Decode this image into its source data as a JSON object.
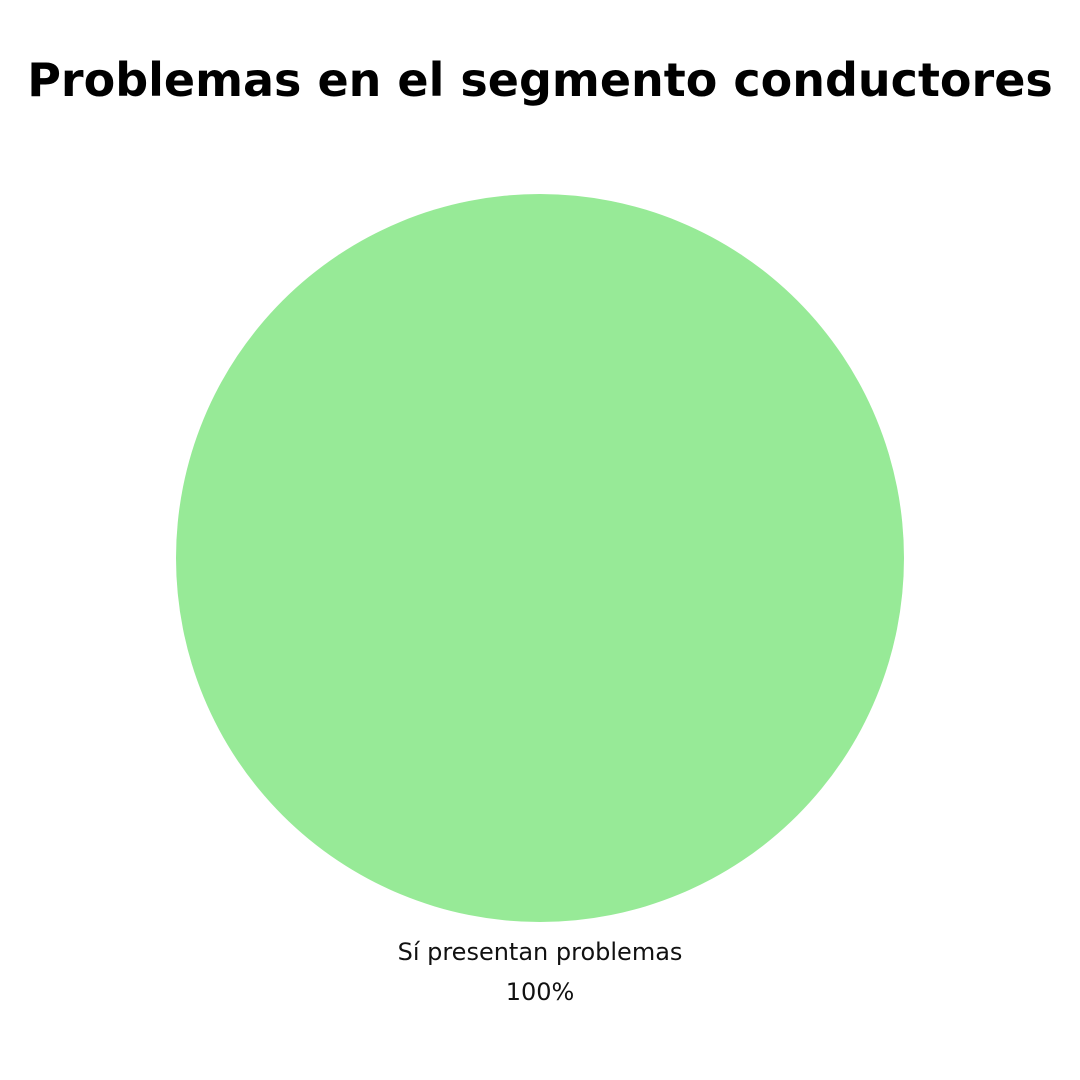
{
  "chart_data": {
    "type": "pie",
    "title": "Problemas en el segmento conductores",
    "slices": [
      {
        "label": "Sí presentan problemas",
        "value": 100,
        "value_label": "100%",
        "color": "#97EA97"
      }
    ],
    "legend": "none"
  }
}
